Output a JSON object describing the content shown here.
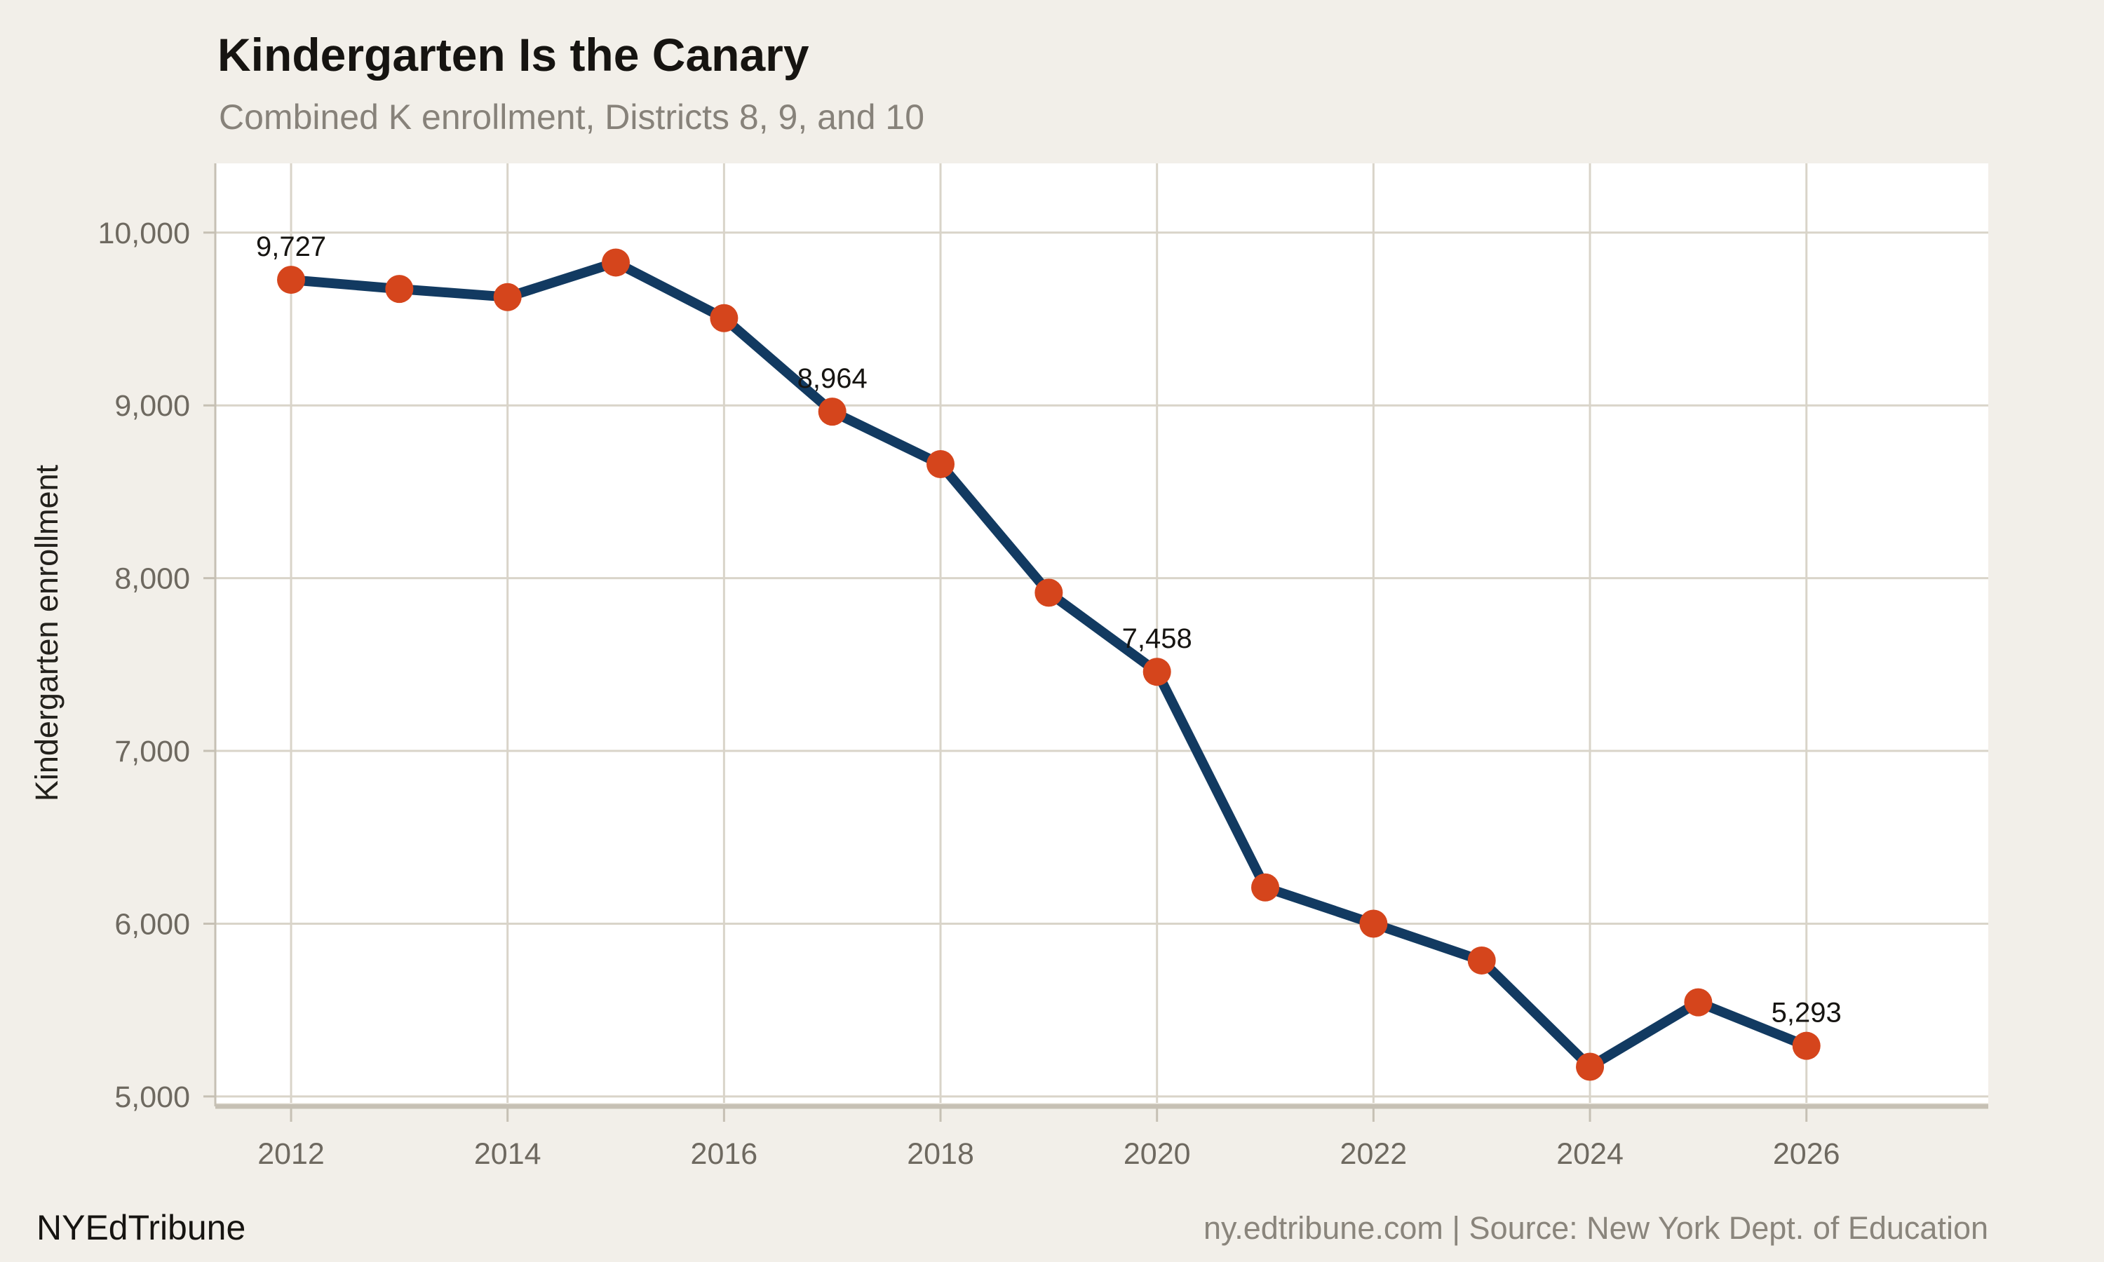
{
  "page": {
    "title": "Kindergarten Is the Canary",
    "subtitle": "Combined K enrollment, Districts 8, 9, and 10",
    "footer_left": "NYEdTribune",
    "footer_right": "ny.edtribune.com | Source: New York Dept. of Education"
  },
  "colors": {
    "background": "#f2efe9",
    "plot_background": "#ffffff",
    "gridline": "#d9d4c9",
    "axis": "#c6c0b4",
    "tick_label": "#6e6960",
    "line": "#123a61",
    "marker": "#d5451c",
    "data_label": "#161411",
    "axis_title": "#23211c"
  },
  "chart_data": {
    "type": "line",
    "title": "Kindergarten Is the Canary",
    "subtitle": "Combined K enrollment, Districts 8, 9, and 10",
    "xlabel": "",
    "ylabel": "Kindergarten enrollment",
    "x": [
      2012,
      2013,
      2014,
      2015,
      2016,
      2017,
      2018,
      2019,
      2020,
      2021,
      2022,
      2023,
      2024,
      2025,
      2026
    ],
    "series": [
      {
        "name": "Combined K enrollment, Districts 8, 9, and 10",
        "values": [
          9727,
          9674,
          9627,
          9827,
          9505,
          8964,
          8660,
          7916,
          7458,
          6210,
          6000,
          5787,
          5172,
          5545,
          5293
        ]
      }
    ],
    "point_labels": [
      {
        "x": 2012,
        "text": "9,727"
      },
      {
        "x": 2017,
        "text": "8,964"
      },
      {
        "x": 2020,
        "text": "7,458"
      },
      {
        "x": 2026,
        "text": "5,293"
      }
    ],
    "x_ticks": [
      {
        "value": 2012,
        "label": "2012"
      },
      {
        "value": 2014,
        "label": "2014"
      },
      {
        "value": 2016,
        "label": "2016"
      },
      {
        "value": 2018,
        "label": "2018"
      },
      {
        "value": 2020,
        "label": "2020"
      },
      {
        "value": 2022,
        "label": "2022"
      },
      {
        "value": 2024,
        "label": "2024"
      },
      {
        "value": 2026,
        "label": "2026"
      }
    ],
    "y_ticks": [
      {
        "value": 5000,
        "label": "5,000"
      },
      {
        "value": 6000,
        "label": "6,000"
      },
      {
        "value": 7000,
        "label": "7,000"
      },
      {
        "value": 8000,
        "label": "8,000"
      },
      {
        "value": 9000,
        "label": "9,000"
      },
      {
        "value": 10000,
        "label": "10,000"
      }
    ],
    "xlim": [
      2011.3,
      2027.68
    ],
    "ylim": [
      4963,
      10401
    ],
    "grid": true,
    "legend_position": "none"
  }
}
